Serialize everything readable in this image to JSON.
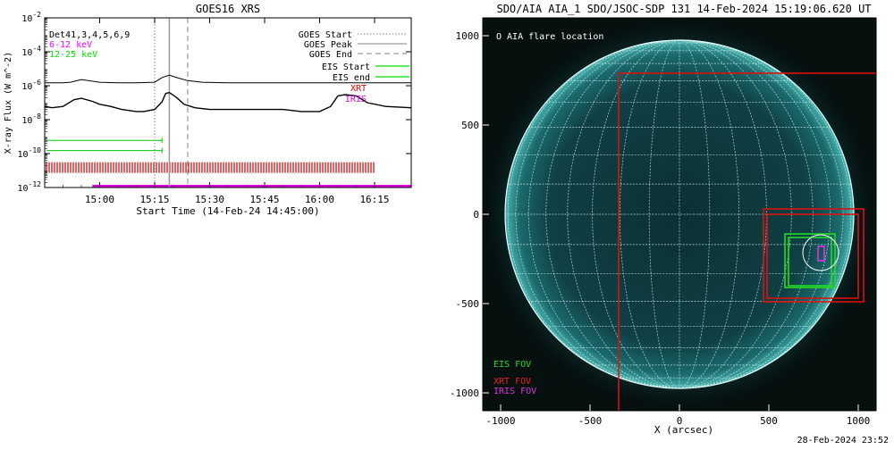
{
  "chart_data": [
    {
      "type": "line",
      "title": "GOES16 XRS",
      "xlabel": "Start Time (14-Feb-24 14:45:00)",
      "ylabel": "X-ray Flux (W m^-2)",
      "y_scale": "log",
      "x_range": [
        "14:45",
        "16:25"
      ],
      "xticks": [
        "15:00",
        "15:15",
        "15:30",
        "15:45",
        "16:00",
        "16:15"
      ],
      "ylim": [
        1e-12,
        0.01
      ],
      "yticks": [
        {
          "base": "10",
          "exp": "-2",
          "value": 0.01
        },
        {
          "base": "10",
          "exp": "-4",
          "value": 0.0001
        },
        {
          "base": "10",
          "exp": "-6",
          "value": 1e-06
        },
        {
          "base": "10",
          "exp": "-8",
          "value": 1e-08
        },
        {
          "base": "10",
          "exp": "-10",
          "value": 1e-10
        },
        {
          "base": "10",
          "exp": "-12",
          "value": 1e-12
        }
      ],
      "det_label": "Det41,3,4,5,6,9",
      "series": [
        {
          "name": "6-12 keV",
          "color": "#ff00ff"
        },
        {
          "name": "12-25 keV",
          "color": "#00dd00"
        }
      ],
      "curves": [
        {
          "color": "#000000",
          "x": [
            "14:45",
            "14:50",
            "14:52",
            "14:55",
            "15:00",
            "15:05",
            "15:10",
            "15:15",
            "15:17",
            "15:19",
            "15:21",
            "15:24",
            "15:28",
            "15:35",
            "15:45",
            "15:55",
            "16:05",
            "16:10",
            "16:15",
            "16:20",
            "16:25"
          ],
          "y": [
            1.5e-06,
            1.5e-06,
            1.6e-06,
            2.3e-06,
            1.6e-06,
            1.5e-06,
            1.5e-06,
            1.6e-06,
            3e-06,
            4.2e-06,
            3e-06,
            2e-06,
            1.6e-06,
            1.5e-06,
            1.5e-06,
            1.5e-06,
            1.5e-06,
            1.5e-06,
            1.5e-06,
            1.5e-06,
            1.5e-06
          ]
        },
        {
          "color": "#000000",
          "x": [
            "14:45",
            "14:47",
            "14:50",
            "14:53",
            "14:55",
            "14:58",
            "15:00",
            "15:03",
            "15:06",
            "15:10",
            "15:12",
            "15:15",
            "15:17",
            "15:18",
            "15:19",
            "15:21",
            "15:23",
            "15:26",
            "15:30",
            "15:40",
            "15:50",
            "15:55",
            "16:00",
            "16:03",
            "16:05",
            "16:07",
            "16:10",
            "16:13",
            "16:18",
            "16:25"
          ],
          "y": [
            6e-08,
            5e-08,
            6e-08,
            1.5e-07,
            1.8e-07,
            1.2e-07,
            8e-08,
            6e-08,
            4e-08,
            3e-08,
            3e-08,
            4e-08,
            1.1e-07,
            3.5e-07,
            4e-07,
            2e-07,
            8e-08,
            5e-08,
            4e-08,
            4e-08,
            4e-08,
            3e-08,
            3e-08,
            6e-08,
            2.5e-07,
            3e-07,
            2.5e-07,
            1e-07,
            6e-08,
            5e-08
          ]
        }
      ],
      "event_lines": [
        {
          "name": "GOES Start",
          "time": "15:15",
          "color": "#999999",
          "style": "dotted"
        },
        {
          "name": "GOES Peak",
          "time": "15:19",
          "color": "#999999",
          "style": "solid"
        },
        {
          "name": "GOES End",
          "time": "15:24",
          "color": "#999999",
          "style": "dashed"
        }
      ],
      "instrument_legend": [
        {
          "name": "EIS Start",
          "color": "#00dd00",
          "marker": "line"
        },
        {
          "name": "EIS end",
          "color": "#00dd00",
          "marker": "line"
        },
        {
          "name": "XRT",
          "color": "#dd0000",
          "marker": "text"
        },
        {
          "name": "IRIS",
          "color": "#dd00dd",
          "marker": "text"
        }
      ],
      "eis_bars": [
        {
          "start": "14:45",
          "end": "15:17",
          "y": 6e-10
        },
        {
          "start": "14:45",
          "end": "15:17",
          "y": 1.5e-10
        }
      ],
      "xrt_coverage": {
        "start": "14:45",
        "end": "16:15",
        "y": 1.5e-11
      },
      "iris_coverage": {
        "start": "14:58",
        "end": "16:25",
        "y": 1.2e-12
      }
    },
    {
      "type": "scatter",
      "title": "SDO/AIA AIA_1 SDO/JSOC-SDP 131 14-Feb-2024 15:19:06.620 UT",
      "xlabel": "X (arcsec)",
      "ylabel": "",
      "xlim": [
        -1100,
        1100
      ],
      "ylim": [
        -1100,
        1100
      ],
      "xticks": [
        "-1000",
        "-500",
        "0",
        "500",
        "1000"
      ],
      "yticks": [
        "1000",
        "500",
        "0",
        "-500",
        "-1000"
      ],
      "solar_radius_arcsec": 975,
      "grid": true,
      "flare_label": "O AIA flare location",
      "flare_location": {
        "x": 790,
        "y": -215
      },
      "fov_legend": [
        {
          "name": "EIS FOV",
          "color": "#22dd22"
        },
        {
          "name": "XRT FOV",
          "color": "#ee2222"
        },
        {
          "name": "IRIS FOV",
          "color": "#dd33dd"
        }
      ],
      "fovs": [
        {
          "instrument": "XRT FOV",
          "color": "#dd1111",
          "x0": -340,
          "x1": 1160,
          "y0": -1130,
          "y1": 790
        },
        {
          "instrument": "XRT FOV",
          "color": "#dd1111",
          "x0": 470,
          "x1": 1030,
          "y0": -490,
          "y1": 30
        },
        {
          "instrument": "XRT FOV",
          "color": "#dd1111",
          "x0": 490,
          "x1": 1000,
          "y0": -470,
          "y1": 0
        },
        {
          "instrument": "EIS FOV",
          "color": "#22dd22",
          "x0": 590,
          "x1": 870,
          "y0": -410,
          "y1": -110
        },
        {
          "instrument": "EIS FOV",
          "color": "#22dd22",
          "x0": 610,
          "x1": 850,
          "y0": -400,
          "y1": -130
        },
        {
          "instrument": "IRIS FOV",
          "color": "#dd33dd",
          "x0": 775,
          "x1": 810,
          "y0": -260,
          "y1": -180
        }
      ]
    }
  ],
  "footer": "28-Feb-2024 23:52"
}
